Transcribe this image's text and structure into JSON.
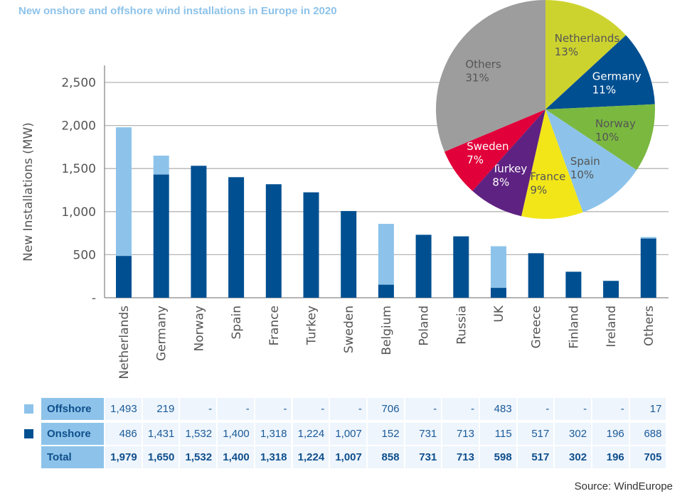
{
  "title": "New onshore and offshore wind installations in Europe in 2020",
  "source": "Source: WindEurope",
  "colors": {
    "offshore": "#8dc3ea",
    "onshore": "#004f91"
  },
  "chart_data": [
    {
      "type": "bar",
      "stacked": true,
      "ylabel": "New  Installations (MW)",
      "ylim": [
        0,
        2500
      ],
      "yticks": [
        0,
        500,
        1000,
        1500,
        2000,
        2500
      ],
      "ytick_labels": [
        "-",
        "500",
        "1,000",
        "1,500",
        "2,000",
        "2,500"
      ],
      "grid": true,
      "categories": [
        "Netherlands",
        "Germany",
        "Norway",
        "Spain",
        "France",
        "Turkey",
        "Sweden",
        "Belgium",
        "Poland",
        "Russia",
        "UK",
        "Greece",
        "Finland",
        "Ireland",
        "Others"
      ],
      "series": [
        {
          "name": "Onshore",
          "values": [
            486,
            1431,
            1532,
            1400,
            1318,
            1224,
            1007,
            152,
            731,
            713,
            115,
            517,
            302,
            196,
            688
          ]
        },
        {
          "name": "Offshore",
          "values": [
            1493,
            219,
            0,
            0,
            0,
            0,
            0,
            706,
            0,
            0,
            483,
            0,
            0,
            0,
            17
          ]
        }
      ]
    },
    {
      "type": "pie",
      "slices": [
        {
          "label": "Netherlands",
          "value": 13,
          "text": "13%",
          "color": "#cdd32e",
          "tc": "#555"
        },
        {
          "label": "Germany",
          "value": 11,
          "text": "11%",
          "color": "#004f91",
          "tc": "#fff"
        },
        {
          "label": "Norway",
          "value": 10,
          "text": "10%",
          "color": "#7ab840",
          "tc": "#555"
        },
        {
          "label": "Spain",
          "value": 10,
          "text": "10%",
          "color": "#8dc3ea",
          "tc": "#555"
        },
        {
          "label": "France",
          "value": 9,
          "text": "9%",
          "color": "#f2e619",
          "tc": "#555"
        },
        {
          "label": "Turkey",
          "value": 8,
          "text": "8%",
          "color": "#5e2282",
          "tc": "#fff"
        },
        {
          "label": "Sweden",
          "value": 7,
          "text": "7%",
          "color": "#e2003a",
          "tc": "#fff"
        },
        {
          "label": "Others",
          "value": 31,
          "text": "31%",
          "color": "#9d9d9d",
          "tc": "#555"
        }
      ]
    },
    {
      "type": "table",
      "rows": [
        {
          "label": "Offshore",
          "values": [
            "1,493",
            "219",
            "-",
            "-",
            "-",
            "-",
            "-",
            "706",
            "-",
            "-",
            "483",
            "-",
            "-",
            "-",
            "17"
          ]
        },
        {
          "label": "Onshore",
          "values": [
            "486",
            "1,431",
            "1,532",
            "1,400",
            "1,318",
            "1,224",
            "1,007",
            "152",
            "731",
            "713",
            "115",
            "517",
            "302",
            "196",
            "688"
          ]
        },
        {
          "label": "Total",
          "values": [
            "1,979",
            "1,650",
            "1,532",
            "1,400",
            "1,318",
            "1,224",
            "1,007",
            "858",
            "731",
            "713",
            "598",
            "517",
            "302",
            "196",
            "705"
          ]
        }
      ]
    }
  ]
}
